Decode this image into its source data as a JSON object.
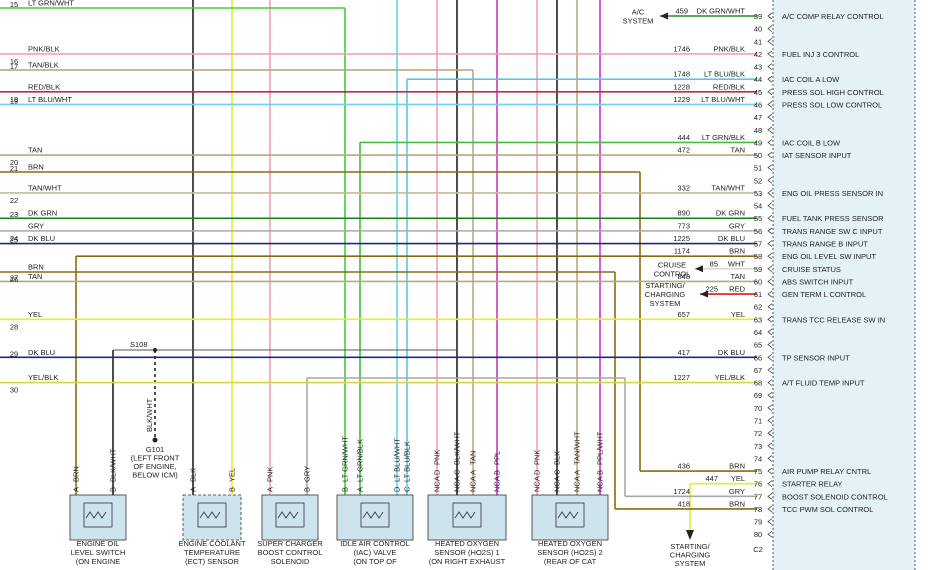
{
  "left_wires": [
    {
      "pin": "15",
      "wire": "LT GRN/WHT",
      "stroke": "#44cc44"
    },
    {
      "pin": "16",
      "wire": "PNK/BLK",
      "stroke": "#f2a0b4"
    },
    {
      "pin": "17",
      "wire": "TAN/BLK",
      "stroke": "#b5a27a"
    },
    {
      "pin": "18",
      "wire": "RED/BLK",
      "stroke": "#c8283a"
    },
    {
      "pin": "19",
      "wire": "LT BLU/WHT",
      "stroke": "#66d4ec"
    },
    {
      "pin": "20",
      "wire": "TAN",
      "stroke": "#b8a880"
    },
    {
      "pin": "21",
      "wire": "BRN",
      "stroke": "#8a6a10"
    },
    {
      "pin": "22",
      "wire": "TAN/WHT",
      "stroke": "#c9b994"
    },
    {
      "pin": "23",
      "wire": "DK GRN",
      "stroke": "#1d7d1d"
    },
    {
      "pin": "24",
      "wire": "GRY",
      "stroke": "#a8a8a8"
    },
    {
      "pin": "25",
      "wire": "DK BLU",
      "stroke": "#1a2a80"
    },
    {
      "pin": "26",
      "wire": "BRN",
      "stroke": "#8a6a10"
    },
    {
      "pin": "27",
      "wire": "TAN",
      "stroke": "#b8a880"
    },
    {
      "pin": "28",
      "wire": "YEL",
      "stroke": "#eaea30"
    },
    {
      "pin": "29",
      "wire": "DK BLU",
      "stroke": "#1a2a80"
    },
    {
      "pin": "30",
      "wire": "YEL/BLK",
      "stroke": "#d6d63a"
    }
  ],
  "connector": {
    "pins": [
      "39",
      "40",
      "41",
      "42",
      "43",
      "44",
      "45",
      "46",
      "47",
      "48",
      "49",
      "50",
      "51",
      "52",
      "53",
      "54",
      "55",
      "56",
      "57",
      "58",
      "59",
      "60",
      "61",
      "62",
      "63",
      "64",
      "65",
      "66",
      "67",
      "68",
      "69",
      "70",
      "71",
      "72",
      "73",
      "74",
      "75",
      "76",
      "77",
      "78",
      "79",
      "80"
    ],
    "name": "C2"
  },
  "circuits": [
    {
      "circuit": "459",
      "wire": "DK GRN/WHT",
      "function": "A/C COMP RELAY CONTROL",
      "stroke": "#2a8a2a"
    },
    {
      "circuit": "1746",
      "wire": "PNK/BLK",
      "function": "FUEL INJ 3 CONTROL",
      "stroke": "#f2a0b4"
    },
    {
      "circuit": "1748",
      "wire": "LT BLU/BLK",
      "function": "IAC COIL A LOW",
      "stroke": "#5cc6e0"
    },
    {
      "circuit": "1228",
      "wire": "RED/BLK",
      "function": "PRESS SOL HIGH CONTROL",
      "stroke": "#c8283a"
    },
    {
      "circuit": "1229",
      "wire": "LT BLU/WHT",
      "function": "PRESS SOL LOW CONTROL",
      "stroke": "#66d4ec"
    },
    {
      "circuit": "444",
      "wire": "LT GRN/BLK",
      "function": "IAC COIL B LOW",
      "stroke": "#44bb44"
    },
    {
      "circuit": "472",
      "wire": "TAN",
      "function": "IAT SENSOR INPUT",
      "stroke": "#b8a880"
    },
    {
      "circuit": "332",
      "wire": "TAN/WHT",
      "function": "ENG OIL PRESS SENSOR IN",
      "stroke": "#c9b994"
    },
    {
      "circuit": "890",
      "wire": "DK GRN",
      "function": "FUEL TANK PRESS SENSOR",
      "stroke": "#1d7d1d"
    },
    {
      "circuit": "773",
      "wire": "GRY",
      "function": "TRANS RANGE SW C INPUT",
      "stroke": "#a8a8a8"
    },
    {
      "circuit": "1225",
      "wire": "DK BLU",
      "function": "TRANS RANGE B INPUT",
      "stroke": "#1a2a80"
    },
    {
      "circuit": "1174",
      "wire": "BRN",
      "function": "ENG OIL LEVEL SW INPUT",
      "stroke": "#8a6a10"
    },
    {
      "circuit": "85",
      "wire": "WHT",
      "function": "CRUISE STATUS",
      "stroke": "#d8d8d8"
    },
    {
      "circuit": "848",
      "wire": "TAN",
      "function": "ABS SWITCH INPUT",
      "stroke": "#b8a880"
    },
    {
      "circuit": "225",
      "wire": "RED",
      "function": "GEN TERM L CONTROL",
      "stroke": "#d42020"
    },
    {
      "circuit": "657",
      "wire": "YEL",
      "function": "TRANS TCC RELEASE SW IN",
      "stroke": "#eaea30"
    },
    {
      "circuit": "417",
      "wire": "DK BLU",
      "function": "TP SENSOR INPUT",
      "stroke": "#1a2a80"
    },
    {
      "circuit": "1227",
      "wire": "YEL/BLK",
      "function": "A/T FLUID TEMP INPUT",
      "stroke": "#d6d63a"
    },
    {
      "circuit": "436",
      "wire": "BRN",
      "function": "AIR PUMP RELAY CNTRL",
      "stroke": "#8a6a10"
    },
    {
      "circuit": "447",
      "wire": "YEL",
      "function": "STARTER RELAY",
      "stroke": "#eaea30"
    },
    {
      "circuit": "1724",
      "wire": "GRY",
      "function": "BOOST SOLENOID CONTROL",
      "stroke": "#a8a8a8"
    },
    {
      "circuit": "418",
      "wire": "BRN",
      "function": "TCC PWM SOL CONTROL",
      "stroke": "#8a6a10"
    }
  ],
  "destinations": [
    {
      "lines": [
        "A/C",
        "SYSTEM"
      ]
    },
    {
      "lines": [
        "CRUISE",
        "CONTROL"
      ]
    },
    {
      "lines": [
        "STARTING/",
        "CHARGING",
        "SYSTEM"
      ]
    },
    {
      "lines": [
        "STARTING/",
        "CHARGING",
        "SYSTEM"
      ]
    }
  ],
  "splice": "S108",
  "ground": {
    "wire": "BLK/WHT",
    "lines": [
      "G101",
      "(LEFT FRONT",
      "OF ENGINE,",
      "BELOW ICM)"
    ]
  },
  "components": [
    {
      "lines": [
        "ENGINE OIL",
        "LEVEL SWITCH",
        "(ON ENGINE"
      ],
      "pins": [
        {
          "letter": "A",
          "wire": "BRN"
        },
        {
          "letter": "B",
          "wire": "BLK/WHT"
        }
      ]
    },
    {
      "lines": [
        "ENGINE COOLANT",
        "TEMPERATURE",
        "(ECT) SENSOR"
      ],
      "pins": [
        {
          "letter": "A",
          "wire": "BLK"
        },
        {
          "letter": "B",
          "wire": "YEL"
        }
      ]
    },
    {
      "lines": [
        "SUPER CHARGER",
        "BOOST CONTROL",
        "SOLENOID"
      ],
      "pins": [
        {
          "letter": "A",
          "wire": "PNK"
        },
        {
          "letter": "B",
          "wire": "GRY"
        }
      ]
    },
    {
      "lines": [
        "IDLE AIR CONTROL",
        "(IAC) VALVE",
        "(ON TOP OF"
      ],
      "pins": [
        {
          "letter": "B",
          "wire": "LT GRN/WHT"
        },
        {
          "letter": "A",
          "wire": "LT GRN/BLK"
        },
        {
          "letter": "D",
          "wire": "LT BLU/WHT"
        },
        {
          "letter": "C",
          "wire": "LT BLU/BLK"
        }
      ]
    },
    {
      "lines": [
        "HEATED OXYGEN",
        "SENSOR (HO2S) 1",
        "(ON RIGHT EXHAUST"
      ],
      "pins": [
        {
          "letter": "D",
          "wire": "PNK",
          "code": "NCA"
        },
        {
          "letter": "C",
          "wire": "BLK/WHT",
          "code": "NCA"
        },
        {
          "letter": "A",
          "wire": "TAN",
          "code": "NCA"
        },
        {
          "letter": "B",
          "wire": "PPL",
          "code": "NCA"
        }
      ]
    },
    {
      "lines": [
        "HEATED OXYGEN",
        "SENSOR (HO2S) 2",
        "(REAR OF CAT"
      ],
      "pins": [
        {
          "letter": "D",
          "wire": "PNK",
          "code": "NCA"
        },
        {
          "letter": "C",
          "wire": "BLK",
          "code": "NCA"
        },
        {
          "letter": "A",
          "wire": "TAN/WHT",
          "code": "NCA"
        },
        {
          "letter": "B",
          "wire": "PPL/WHT",
          "code": "NCA"
        }
      ]
    }
  ]
}
